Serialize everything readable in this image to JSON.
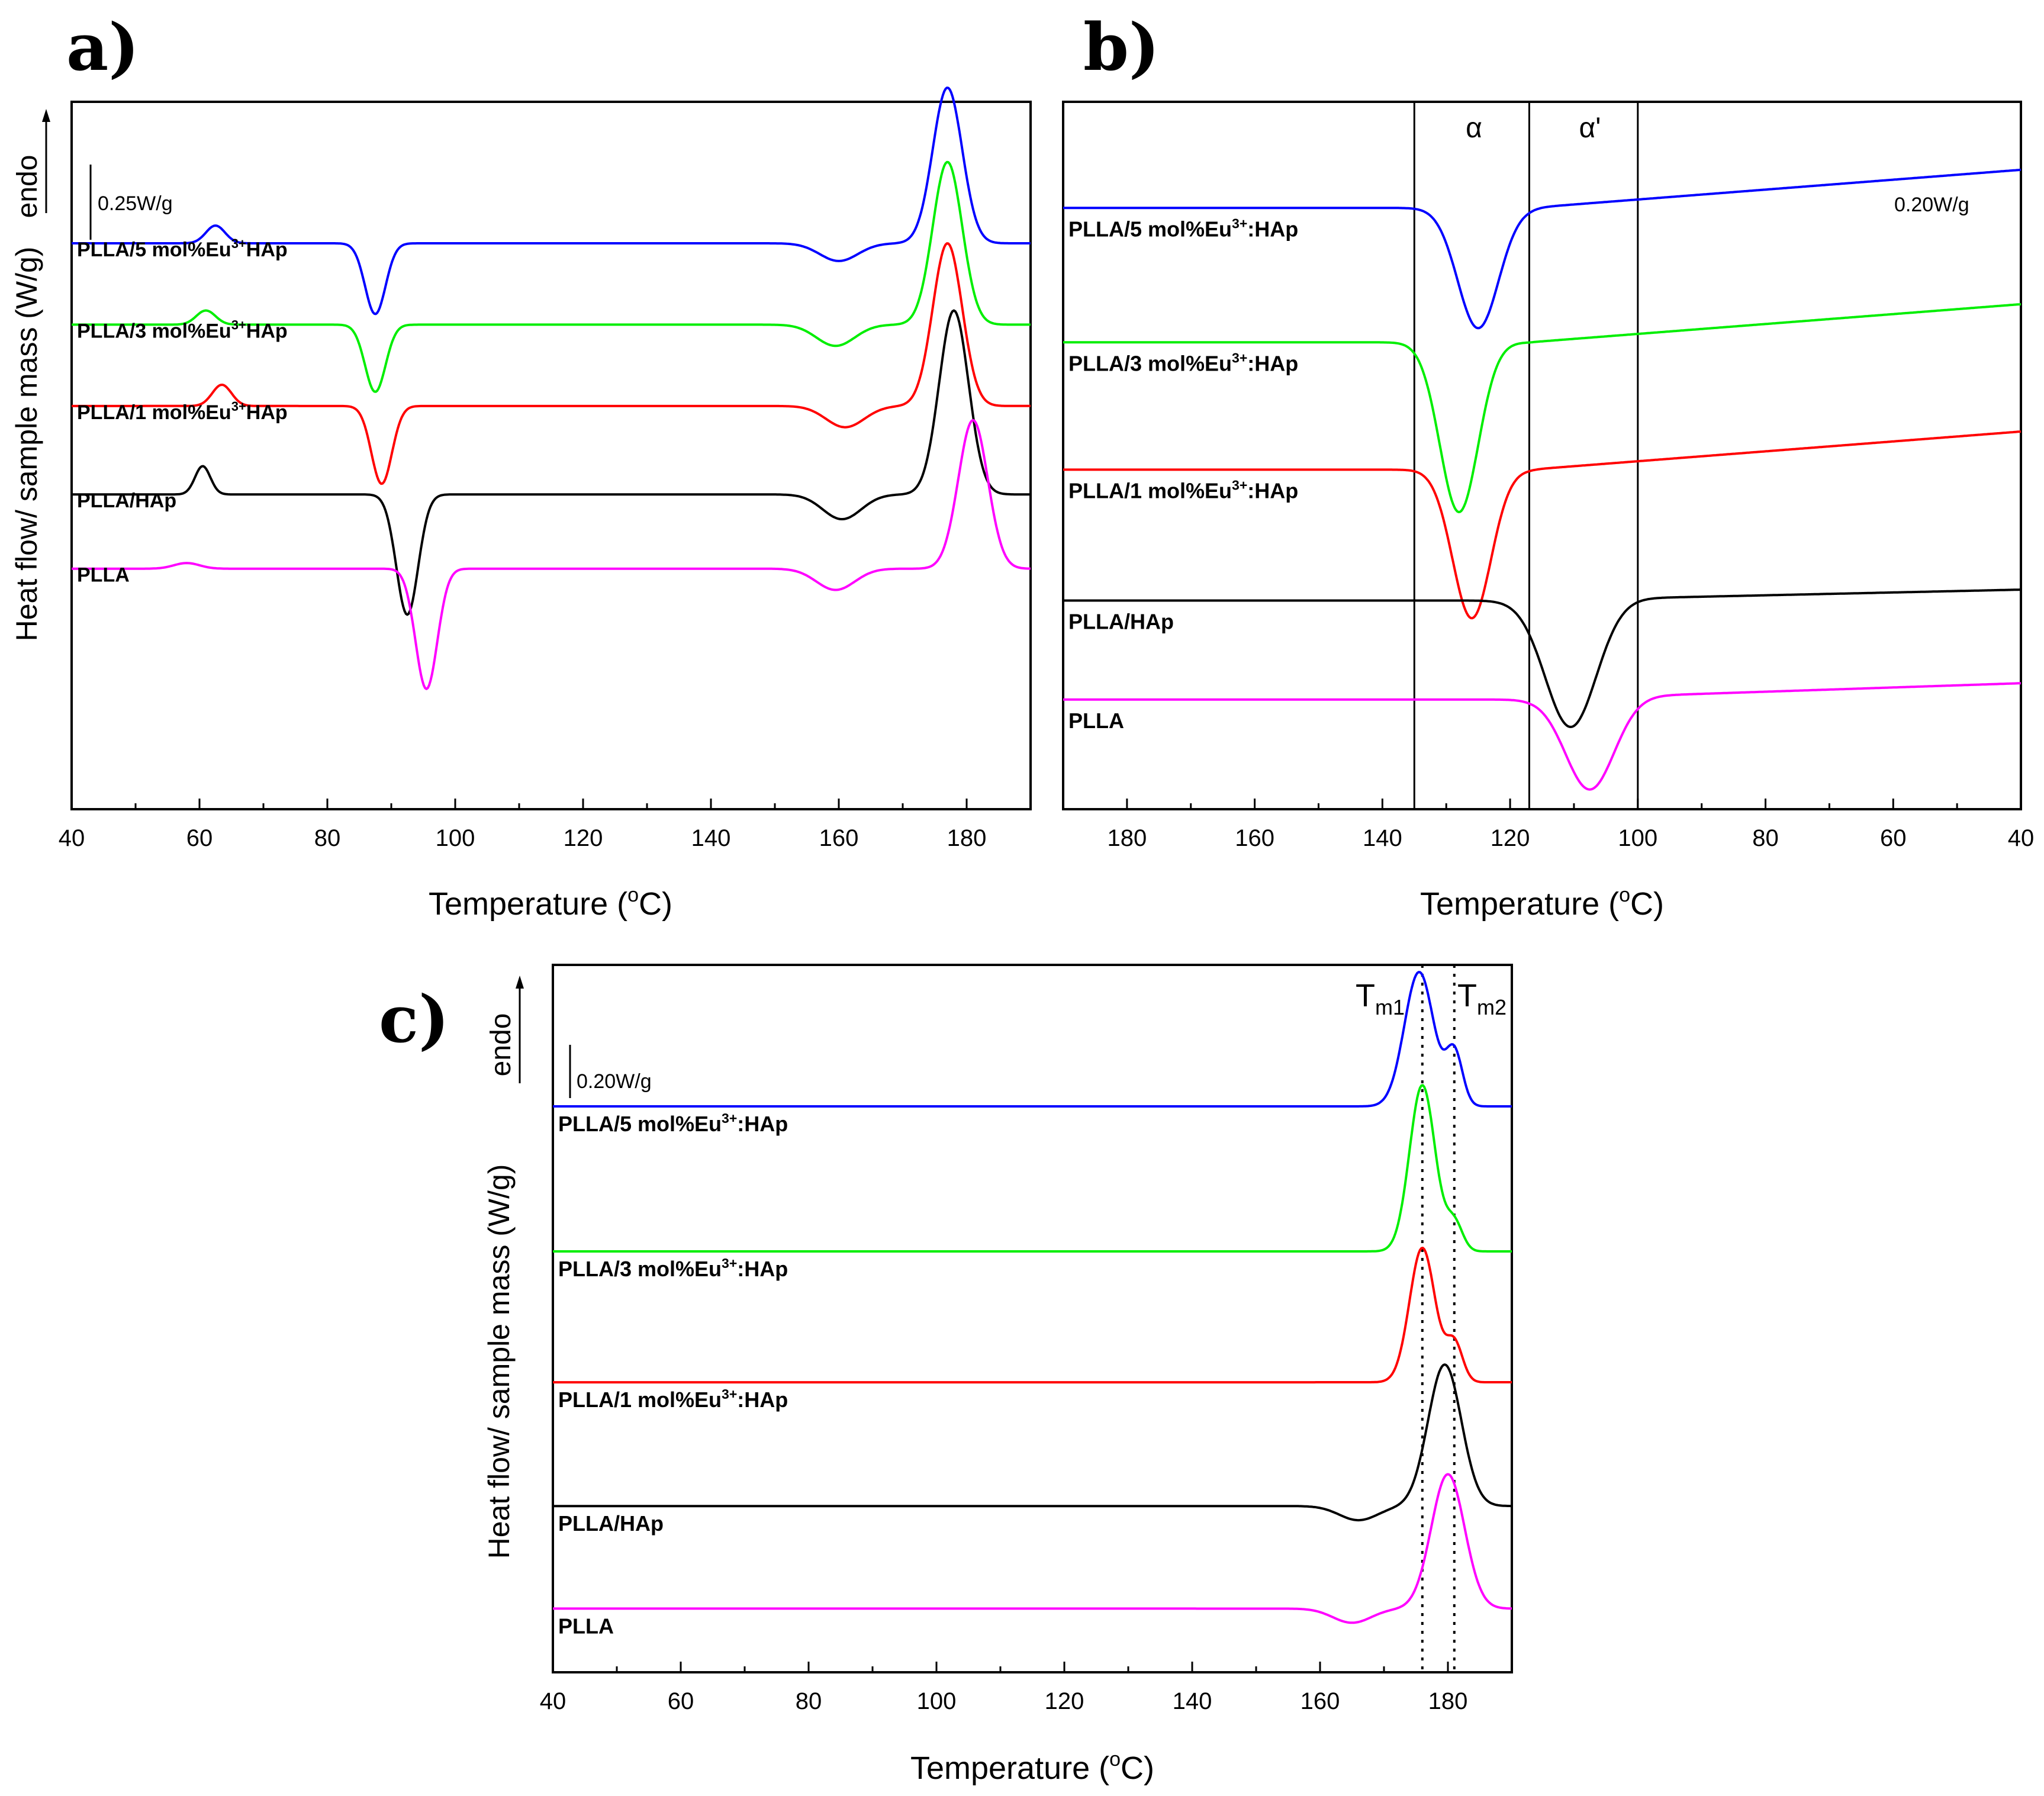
{
  "chart_data": [
    {
      "id": "a",
      "type": "line",
      "panel_label": "a)",
      "xlabel": "Temperature (",
      "xlabel_unit": "o",
      "xlabel_tail": "C)",
      "ylabel": "Heat flow/ sample mass (W/g)",
      "endo_label": "endo",
      "scale_label": "0.25W/g",
      "xlim": [
        40,
        190
      ],
      "x_reversed": false,
      "xticks": [
        "40",
        "60",
        "80",
        "100",
        "120",
        "140",
        "160",
        "180"
      ],
      "series": [
        {
          "name": "PLLA/5 mol%Eu",
          "sup": "3+",
          "tail": "HAp",
          "color": "#0000ff",
          "baseline": 0.8,
          "features": [
            {
              "c": 62.5,
              "a": 0.025,
              "w": 1.5
            },
            {
              "c": 87.5,
              "a": -0.1,
              "w": 1.6
            },
            {
              "c": 160,
              "a": -0.025,
              "w": 3.0
            },
            {
              "c": 177,
              "a": 0.22,
              "w": 2.3
            }
          ]
        },
        {
          "name": "PLLA/3 mol%Eu",
          "sup": "3+",
          "tail": "HAp",
          "color": "#00ee00",
          "baseline": 0.685,
          "features": [
            {
              "c": 61,
              "a": 0.02,
              "w": 1.5
            },
            {
              "c": 87.5,
              "a": -0.095,
              "w": 1.6
            },
            {
              "c": 159.5,
              "a": -0.03,
              "w": 3.0
            },
            {
              "c": 177,
              "a": 0.23,
              "w": 2.3
            }
          ]
        },
        {
          "name": "PLLA/1 mol%Eu",
          "sup": "3+",
          "tail": "HAp",
          "color": "#ff0000",
          "baseline": 0.57,
          "features": [
            {
              "c": 63.5,
              "a": 0.03,
              "w": 1.5
            },
            {
              "c": 88.5,
              "a": -0.11,
              "w": 1.6
            },
            {
              "c": 161,
              "a": -0.03,
              "w": 3.0
            },
            {
              "c": 177,
              "a": 0.23,
              "w": 2.3
            }
          ]
        },
        {
          "name": "PLLA/HAp",
          "sup": "",
          "tail": "",
          "color": "#000000",
          "baseline": 0.445,
          "features": [
            {
              "c": 60.5,
              "a": 0.04,
              "w": 1.2
            },
            {
              "c": 92.5,
              "a": -0.17,
              "w": 1.7
            },
            {
              "c": 160.5,
              "a": -0.035,
              "w": 3.0
            },
            {
              "c": 178,
              "a": 0.26,
              "w": 2.3
            }
          ]
        },
        {
          "name": "PLLA",
          "sup": "",
          "tail": "",
          "color": "#ff00ff",
          "baseline": 0.34,
          "features": [
            {
              "c": 58,
              "a": 0.008,
              "w": 2.0
            },
            {
              "c": 95.5,
              "a": -0.17,
              "w": 1.7
            },
            {
              "c": 159.5,
              "a": -0.03,
              "w": 3.0
            },
            {
              "c": 181,
              "a": 0.21,
              "w": 2.3
            }
          ]
        }
      ]
    },
    {
      "id": "b",
      "type": "line",
      "panel_label": "b)",
      "xlabel": "Temperature (",
      "xlabel_unit": "o",
      "xlabel_tail": "C)",
      "scale_label": "0.20W/g",
      "alpha_label": "α",
      "alpha_prime_label": "α'",
      "vlines": [
        135,
        117,
        100
      ],
      "xlim": [
        190,
        40
      ],
      "x_reversed": true,
      "xticks": [
        "180",
        "160",
        "140",
        "120",
        "100",
        "80",
        "60",
        "40"
      ],
      "series": [
        {
          "name": "PLLA/5 mol%Eu",
          "sup": "3+",
          "tail": ":HAp",
          "color": "#0000ff",
          "baseline": 0.85,
          "slope": 0.0007,
          "features": [
            {
              "c": 125,
              "a": -0.17,
              "w": 3.2
            }
          ]
        },
        {
          "name": "PLLA/3 mol%Eu",
          "sup": "3+",
          "tail": ":HAp",
          "color": "#00ee00",
          "baseline": 0.66,
          "slope": 0.0007,
          "features": [
            {
              "c": 128,
              "a": -0.24,
              "w": 3.0
            }
          ]
        },
        {
          "name": "PLLA/1 mol%Eu",
          "sup": "3+",
          "tail": ":HAp",
          "color": "#ff0000",
          "baseline": 0.48,
          "slope": 0.0007,
          "features": [
            {
              "c": 126,
              "a": -0.21,
              "w": 3.0
            }
          ]
        },
        {
          "name": "PLLA/HAp",
          "sup": "",
          "tail": "",
          "color": "#000000",
          "baseline": 0.295,
          "slope": 0.0002,
          "features": [
            {
              "c": 110.5,
              "a": -0.18,
              "w": 4.0
            }
          ]
        },
        {
          "name": "PLLA",
          "sup": "",
          "tail": "",
          "color": "#ff00ff",
          "baseline": 0.155,
          "slope": 0.0003,
          "features": [
            {
              "c": 107.5,
              "a": -0.13,
              "w": 3.8
            }
          ]
        }
      ]
    },
    {
      "id": "c",
      "type": "line",
      "panel_label": "c)",
      "xlabel": "Temperature (",
      "xlabel_unit": "o",
      "xlabel_tail": "C)",
      "ylabel": "Heat flow/ sample mass (W/g)",
      "endo_label": "endo",
      "scale_label": "0.20W/g",
      "tm1_label": "T",
      "tm1_sub": "m1",
      "tm2_label": "T",
      "tm2_sub": "m2",
      "vlines": [
        176,
        181
      ],
      "xlim": [
        40,
        190
      ],
      "x_reversed": false,
      "xticks": [
        "40",
        "60",
        "80",
        "100",
        "120",
        "140",
        "160",
        "180"
      ],
      "series": [
        {
          "name": "PLLA/5 mol%Eu",
          "sup": "3+",
          "tail": ":HAp",
          "color": "#0000ff",
          "baseline": 0.8,
          "features": [
            {
              "c": 175.5,
              "a": 0.19,
              "w": 2.3
            },
            {
              "c": 181,
              "a": 0.075,
              "w": 1.3
            }
          ]
        },
        {
          "name": "PLLA/3 mol%Eu",
          "sup": "3+",
          "tail": ":HAp",
          "color": "#00ee00",
          "baseline": 0.595,
          "features": [
            {
              "c": 176,
              "a": 0.235,
              "w": 2.0
            },
            {
              "c": 181,
              "a": 0.04,
              "w": 1.3
            }
          ]
        },
        {
          "name": "PLLA/1 mol%Eu",
          "sup": "3+",
          "tail": ":HAp",
          "color": "#ff0000",
          "baseline": 0.41,
          "features": [
            {
              "c": 176,
              "a": 0.19,
              "w": 2.0
            },
            {
              "c": 181,
              "a": 0.055,
              "w": 1.3
            }
          ]
        },
        {
          "name": "PLLA/HAp",
          "sup": "",
          "tail": "",
          "color": "#000000",
          "baseline": 0.235,
          "features": [
            {
              "c": 166,
              "a": -0.02,
              "w": 3.0
            },
            {
              "c": 179.5,
              "a": 0.2,
              "w": 2.6
            }
          ]
        },
        {
          "name": "PLLA",
          "sup": "",
          "tail": "",
          "color": "#ff00ff",
          "baseline": 0.09,
          "features": [
            {
              "c": 165,
              "a": -0.02,
              "w": 3.0
            },
            {
              "c": 180,
              "a": 0.19,
              "w": 2.6
            }
          ]
        }
      ]
    }
  ]
}
